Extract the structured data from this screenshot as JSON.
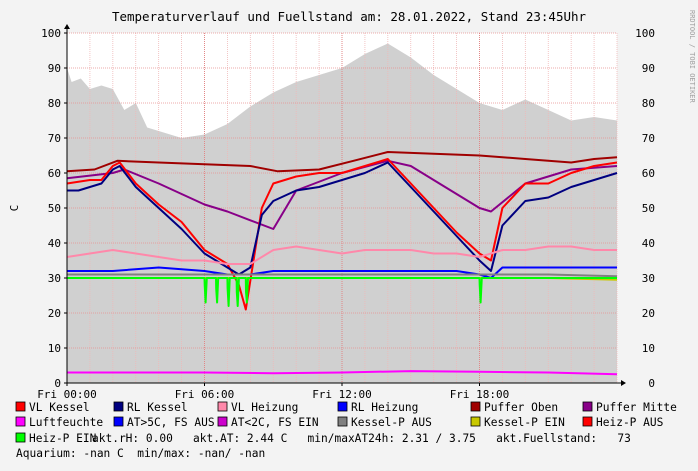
{
  "side_watermark": "RRDTOOL / TOBI OETIKER",
  "legend_rows": [
    [
      {
        "label": "VL Kessel",
        "color": "#ff0000"
      },
      {
        "label": "RL Kessel",
        "color": "#000080"
      },
      {
        "label": "VL Heizung",
        "color": "#ff88aa"
      },
      {
        "label": "RL Heizung",
        "color": "#0000ff"
      },
      {
        "label": "Puffer Oben",
        "color": "#a00000"
      },
      {
        "label": "Puffer Mitte",
        "color": "#880088"
      }
    ],
    [
      {
        "label": "Luftfeuchte",
        "color": "#ff00ff"
      },
      {
        "label": "AT>5C, FS AUS",
        "color": "#0000ff"
      },
      {
        "label": "AT<2C, FS EIN",
        "color": "#cc00cc"
      },
      {
        "label": "Kessel-P AUS",
        "color": "#808080"
      },
      {
        "label": "Kessel-P EIN",
        "color": "#c8c800"
      },
      {
        "label": "Heiz-P AUS",
        "color": "#ff0000"
      }
    ]
  ],
  "stats_line_1": {
    "swatch": {
      "label": "Heiz-P EIN",
      "color": "#00ff00"
    },
    "text": "akt.rH: 0.00   akt.AT: 2.44 C   min/maxAT24h: 2.31 / 3.75   akt.Fuellstand:   73"
  },
  "stats_line_2": "Aquarium: -nan C  min/max: -nan/ -nan",
  "chart_data": {
    "type": "line",
    "title": "Temperaturverlauf und Fuellstand am: 28.01.2022, Stand 23:45Uhr",
    "ylabel": "C",
    "xlabel": "",
    "x_unit": "hours since 00:00",
    "xlim": [
      0,
      24
    ],
    "ylim": [
      0,
      100
    ],
    "y_ticks": [
      0,
      10,
      20,
      30,
      40,
      50,
      60,
      70,
      80,
      90,
      100
    ],
    "x_ticks": [
      {
        "value": 0,
        "label": "Fri 00:00"
      },
      {
        "value": 6,
        "label": "Fri 06:00"
      },
      {
        "value": 12,
        "label": "Fri 12:00"
      },
      {
        "value": 18,
        "label": "Fri 18:00"
      }
    ],
    "grid": true,
    "legend_position": "bottom",
    "background_area": {
      "name": "Fuellstand",
      "color": "#d0d0d0",
      "x": [
        0,
        0.2,
        0.6,
        1.0,
        1.5,
        2.0,
        2.5,
        3.0,
        3.5,
        4.0,
        5.0,
        6.0,
        7.0,
        8.0,
        9.0,
        10.0,
        11.0,
        12.0,
        13.0,
        14.0,
        15.0,
        16.0,
        17.0,
        18.0,
        19.0,
        20.0,
        21.0,
        22.0,
        23.0,
        24.0
      ],
      "values": [
        90,
        86,
        87,
        84,
        85,
        84,
        78,
        80,
        73,
        72,
        70,
        71,
        74,
        79,
        83,
        86,
        88,
        90,
        94,
        97,
        93,
        88,
        84,
        80,
        78,
        81,
        78,
        75,
        76,
        75
      ]
    },
    "series": [
      {
        "name": "Puffer Oben",
        "color": "#a00000",
        "x": [
          0,
          1.2,
          2.2,
          4.0,
          6.0,
          8.0,
          9.2,
          11.0,
          12.5,
          14.0,
          16.0,
          18.0,
          20.0,
          22.0,
          23.0,
          24.0
        ],
        "values": [
          60.5,
          61,
          63.5,
          63,
          62.5,
          62,
          60.5,
          61,
          63.5,
          66,
          65.5,
          65,
          64,
          63,
          64,
          64.5
        ]
      },
      {
        "name": "Puffer Mitte",
        "color": "#880088",
        "x": [
          0,
          2.0,
          2.5,
          4.0,
          6.0,
          7.0,
          8.0,
          9.0,
          10.0,
          12.0,
          14.0,
          15.0,
          16.5,
          18.0,
          18.5,
          20.0,
          22.0,
          24.0
        ],
        "values": [
          58.5,
          60,
          61,
          57,
          51,
          49,
          46.5,
          44,
          55,
          60,
          63.5,
          62,
          56,
          50,
          49,
          57,
          61,
          62
        ]
      },
      {
        "name": "VL Kessel",
        "color": "#ff0000",
        "x": [
          0,
          1.0,
          1.5,
          2.0,
          2.3,
          3.0,
          3.5,
          4.0,
          5.0,
          6.0,
          7.0,
          7.5,
          7.8,
          8.5,
          9.0,
          10.0,
          11.0,
          12.0,
          13.0,
          14.0,
          15.0,
          16.0,
          17.0,
          18.0,
          18.5,
          19.0,
          20.0,
          21.0,
          22.0,
          23.0,
          24.0
        ],
        "values": [
          57,
          58,
          58,
          62,
          63,
          57,
          54,
          51,
          46,
          38,
          34,
          28,
          21,
          50,
          57,
          59,
          60,
          60,
          62,
          64,
          57,
          50,
          43,
          37,
          35,
          50,
          57,
          57,
          60,
          62,
          63
        ]
      },
      {
        "name": "RL Kessel",
        "color": "#000080",
        "x": [
          0,
          0.5,
          1.0,
          1.5,
          2.0,
          2.3,
          3.0,
          3.5,
          4.0,
          5.0,
          6.0,
          6.5,
          7.0,
          7.5,
          8.0,
          8.5,
          9.0,
          10.0,
          11.0,
          12.0,
          13.0,
          14.0,
          15.0,
          16.0,
          17.0,
          18.0,
          18.5,
          19.0,
          20.0,
          21.0,
          22.0,
          23.0,
          24.0
        ],
        "values": [
          55,
          55,
          56,
          57,
          61,
          62,
          56,
          53,
          50,
          44,
          37,
          35,
          33,
          31,
          33,
          48,
          52,
          55,
          56,
          58,
          60,
          63,
          56,
          49,
          42,
          35,
          32,
          45,
          52,
          53,
          56,
          58,
          60
        ]
      },
      {
        "name": "VL Heizung",
        "color": "#ff88aa",
        "x": [
          0,
          1.0,
          2.0,
          3.0,
          4.0,
          5.0,
          6.0,
          7.0,
          8.0,
          9.0,
          10.0,
          11.0,
          12.0,
          13.0,
          14.0,
          15.0,
          16.0,
          17.0,
          18.0,
          19.0,
          20.0,
          21.0,
          22.0,
          23.0,
          24.0
        ],
        "values": [
          36,
          37,
          38,
          37,
          36,
          35,
          35,
          34,
          34,
          38,
          39,
          38,
          37,
          38,
          38,
          38,
          37,
          37,
          36,
          38,
          38,
          39,
          39,
          38,
          38
        ]
      },
      {
        "name": "RL Heizung",
        "color": "#0000ff",
        "x": [
          0,
          2.0,
          4.0,
          6.0,
          7.0,
          8.0,
          9.0,
          11.0,
          13.0,
          15.0,
          17.0,
          18.0,
          18.5,
          19.0,
          21.0,
          23.0,
          24.0
        ],
        "values": [
          32,
          32,
          33,
          32,
          31,
          31,
          32,
          32,
          32,
          32,
          32,
          31,
          30,
          33,
          33,
          33,
          33
        ]
      },
      {
        "name": "Kessel-P EIN",
        "color": "#c8c800",
        "x": [
          0,
          3.0,
          6.0,
          9.0,
          12.0,
          15.0,
          18.0,
          21.0,
          24.0
        ],
        "values": [
          30,
          30,
          30,
          30,
          30,
          30,
          30,
          30,
          29.5
        ]
      },
      {
        "name": "Kessel-P AUS",
        "color": "#808080",
        "x": [
          0,
          3.0,
          6.0,
          9.0,
          12.0,
          15.0,
          18.0,
          21.0,
          24.0
        ],
        "values": [
          31,
          31,
          31,
          31,
          31,
          31,
          31,
          31,
          30.5
        ]
      },
      {
        "name": "Luftfeuchte",
        "color": "#ff00ff",
        "x": [
          0,
          3.0,
          6.0,
          9.0,
          12.0,
          15.0,
          18.0,
          21.0,
          24.0
        ],
        "values": [
          3,
          3,
          3,
          2.8,
          3,
          3.4,
          3.2,
          3,
          2.5
        ]
      },
      {
        "name": "Heiz-P EIN",
        "color": "#00ff00",
        "x": [
          0,
          6.0,
          6.01,
          6.05,
          6.1,
          6.5,
          6.51,
          6.55,
          6.6,
          7.0,
          7.01,
          7.05,
          7.1,
          7.4,
          7.41,
          7.45,
          7.5,
          7.8,
          7.81,
          7.85,
          7.9,
          8.0,
          18.0,
          18.01,
          18.05,
          18.1,
          24.0
        ],
        "values": [
          30,
          30,
          28,
          23,
          30,
          30,
          27,
          23,
          30,
          30,
          27,
          22,
          30,
          30,
          26,
          22,
          30,
          30,
          26,
          23,
          30,
          30,
          30,
          28,
          23,
          30,
          30
        ]
      }
    ]
  }
}
